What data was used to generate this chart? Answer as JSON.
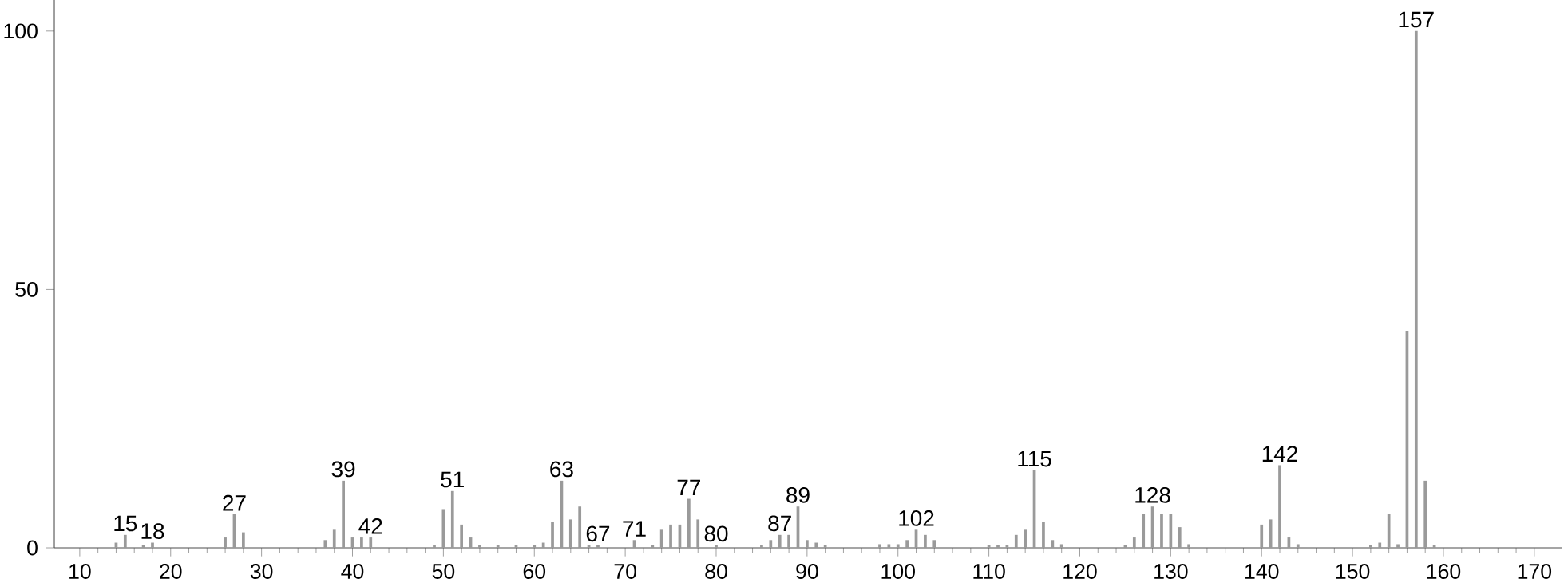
{
  "chart_data": {
    "type": "bar",
    "x": [
      14,
      15,
      17,
      18,
      26,
      27,
      28,
      37,
      38,
      39,
      40,
      41,
      42,
      49,
      50,
      51,
      52,
      53,
      54,
      56,
      58,
      60,
      61,
      62,
      63,
      64,
      65,
      66,
      67,
      71,
      73,
      74,
      75,
      76,
      77,
      78,
      80,
      85,
      86,
      87,
      88,
      89,
      90,
      91,
      92,
      98,
      99,
      100,
      101,
      102,
      103,
      104,
      110,
      111,
      112,
      113,
      114,
      115,
      116,
      117,
      118,
      125,
      126,
      127,
      128,
      129,
      130,
      131,
      132,
      140,
      141,
      142,
      143,
      144,
      152,
      153,
      154,
      155,
      156,
      157,
      158,
      159
    ],
    "values": [
      1,
      2.5,
      0.5,
      1,
      2,
      6.5,
      3,
      1.5,
      3.5,
      13,
      2,
      2,
      2,
      0.5,
      7.5,
      11,
      4.5,
      2,
      0.5,
      0.5,
      0.5,
      0.5,
      1,
      5,
      13,
      5.5,
      8,
      0.5,
      0.5,
      1.5,
      0.5,
      3.5,
      4.5,
      4.5,
      9.5,
      5.5,
      0.5,
      0.5,
      1.5,
      2.5,
      2.5,
      8,
      1.5,
      1,
      0.5,
      0.7,
      0.7,
      0.7,
      1.5,
      3.5,
      2.5,
      1.5,
      0.5,
      0.5,
      0.5,
      2.5,
      3.5,
      15,
      5,
      1.5,
      0.7,
      0.5,
      2,
      6.5,
      8,
      6.5,
      6.5,
      4,
      0.7,
      4.5,
      5.5,
      16,
      2,
      0.7,
      0.5,
      1,
      6.5,
      0.7,
      42,
      100,
      13,
      0.5
    ],
    "color": "#9a9a9a",
    "xlim": [
      7.2,
      173
    ],
    "ylim": [
      0,
      106
    ],
    "xticks": [
      10,
      20,
      30,
      40,
      50,
      60,
      70,
      80,
      90,
      100,
      110,
      120,
      130,
      140,
      150,
      160,
      170
    ],
    "yticks": [
      0,
      50,
      100
    ],
    "annotations": [
      {
        "text": "15",
        "x": 15,
        "y": 2.5
      },
      {
        "text": "18",
        "x": 18,
        "y": 1
      },
      {
        "text": "27",
        "x": 27,
        "y": 6.5
      },
      {
        "text": "39",
        "x": 39,
        "y": 13
      },
      {
        "text": "42",
        "x": 42,
        "y": 2
      },
      {
        "text": "51",
        "x": 51,
        "y": 11
      },
      {
        "text": "63",
        "x": 63,
        "y": 13
      },
      {
        "text": "67",
        "x": 67,
        "y": 0.5
      },
      {
        "text": "71",
        "x": 71,
        "y": 1.5
      },
      {
        "text": "77",
        "x": 77,
        "y": 9.5
      },
      {
        "text": "80",
        "x": 80,
        "y": 0.5
      },
      {
        "text": "87",
        "x": 87,
        "y": 2.5
      },
      {
        "text": "89",
        "x": 89,
        "y": 8
      },
      {
        "text": "102",
        "x": 102,
        "y": 3.5
      },
      {
        "text": "115",
        "x": 115,
        "y": 15
      },
      {
        "text": "128",
        "x": 128,
        "y": 8
      },
      {
        "text": "142",
        "x": 142,
        "y": 16
      },
      {
        "text": "157",
        "x": 157,
        "y": 100
      }
    ]
  }
}
